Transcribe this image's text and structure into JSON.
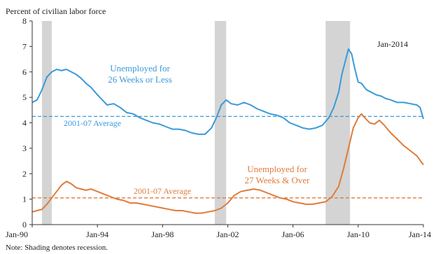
{
  "chart_data": {
    "type": "line",
    "ylabel": "Percent of civilian labor force",
    "xlabel": "",
    "date_stamp": "Jan-2014",
    "note": "Note: Shading denotes recession.",
    "ylim": [
      0,
      8
    ],
    "yticks": [
      0,
      1,
      2,
      3,
      4,
      5,
      6,
      7,
      8
    ],
    "xlim": [
      1990.0,
      2014.0
    ],
    "xticks": [
      {
        "value": 1990.0,
        "label": "Jan-90"
      },
      {
        "value": 1994.0,
        "label": "Jan-94"
      },
      {
        "value": 1998.0,
        "label": "Jan-98"
      },
      {
        "value": 2002.0,
        "label": "Jan-02"
      },
      {
        "value": 2006.0,
        "label": "Jan-06"
      },
      {
        "value": 2010.0,
        "label": "Jan-10"
      },
      {
        "value": 2014.0,
        "label": "Jan-14"
      }
    ],
    "recessions": [
      {
        "start": 1990.6,
        "end": 1991.2
      },
      {
        "start": 2001.2,
        "end": 2001.9
      },
      {
        "start": 2008.0,
        "end": 2009.5
      }
    ],
    "series": [
      {
        "name": "Unemployed for 26 Weeks or Less",
        "name_line1": "Unemployed for",
        "name_line2": "26 Weeks or Less",
        "color": "#3a9ad9",
        "x": [
          1990.0,
          1990.3,
          1990.6,
          1990.9,
          1991.2,
          1991.5,
          1991.8,
          1992.1,
          1992.4,
          1992.7,
          1993.0,
          1993.3,
          1993.6,
          1994.0,
          1994.3,
          1994.6,
          1995.0,
          1995.4,
          1995.8,
          1996.2,
          1996.6,
          1997.0,
          1997.4,
          1997.8,
          1998.2,
          1998.6,
          1999.0,
          1999.4,
          1999.8,
          2000.2,
          2000.6,
          2001.0,
          2001.3,
          2001.6,
          2001.9,
          2002.2,
          2002.6,
          2003.0,
          2003.4,
          2003.8,
          2004.2,
          2004.6,
          2005.0,
          2005.4,
          2005.8,
          2006.2,
          2006.6,
          2007.0,
          2007.4,
          2007.8,
          2008.2,
          2008.5,
          2008.8,
          2009.0,
          2009.2,
          2009.4,
          2009.6,
          2009.8,
          2010.0,
          2010.2,
          2010.5,
          2010.8,
          2011.1,
          2011.4,
          2011.7,
          2012.0,
          2012.4,
          2012.8,
          2013.2,
          2013.6,
          2013.8,
          2014.0
        ],
        "values": [
          4.8,
          4.9,
          5.3,
          5.8,
          6.0,
          6.1,
          6.05,
          6.1,
          6.0,
          5.9,
          5.75,
          5.55,
          5.4,
          5.1,
          4.9,
          4.7,
          4.75,
          4.6,
          4.4,
          4.35,
          4.2,
          4.1,
          4.0,
          3.95,
          3.85,
          3.75,
          3.75,
          3.7,
          3.6,
          3.55,
          3.55,
          3.8,
          4.2,
          4.7,
          4.9,
          4.75,
          4.7,
          4.8,
          4.7,
          4.55,
          4.45,
          4.35,
          4.3,
          4.2,
          4.0,
          3.9,
          3.8,
          3.75,
          3.8,
          3.9,
          4.2,
          4.6,
          5.2,
          5.9,
          6.4,
          6.9,
          6.7,
          6.1,
          5.6,
          5.55,
          5.3,
          5.2,
          5.1,
          5.05,
          4.95,
          4.9,
          4.8,
          4.8,
          4.75,
          4.7,
          4.6,
          4.15
        ]
      },
      {
        "name": "Unemployed for 27 Weeks & Over",
        "name_line1": "Unemployed for",
        "name_line2": "27 Weeks & Over",
        "color": "#e07b39",
        "x": [
          1990.0,
          1990.3,
          1990.6,
          1990.9,
          1991.2,
          1991.5,
          1991.8,
          1992.1,
          1992.4,
          1992.7,
          1993.0,
          1993.3,
          1993.6,
          1994.0,
          1994.4,
          1994.8,
          1995.2,
          1995.6,
          1996.0,
          1996.4,
          1996.8,
          1997.2,
          1997.6,
          1998.0,
          1998.4,
          1998.8,
          1999.2,
          1999.6,
          2000.0,
          2000.4,
          2000.8,
          2001.2,
          2001.6,
          2002.0,
          2002.4,
          2002.8,
          2003.2,
          2003.6,
          2004.0,
          2004.4,
          2004.8,
          2005.2,
          2005.6,
          2006.0,
          2006.4,
          2006.8,
          2007.2,
          2007.6,
          2008.0,
          2008.4,
          2008.8,
          2009.1,
          2009.4,
          2009.7,
          2010.0,
          2010.2,
          2010.4,
          2010.7,
          2011.0,
          2011.3,
          2011.6,
          2012.0,
          2012.4,
          2012.8,
          2013.2,
          2013.6,
          2014.0
        ],
        "values": [
          0.5,
          0.55,
          0.6,
          0.8,
          1.05,
          1.3,
          1.55,
          1.7,
          1.6,
          1.45,
          1.4,
          1.35,
          1.4,
          1.3,
          1.2,
          1.1,
          1.0,
          0.95,
          0.85,
          0.85,
          0.8,
          0.75,
          0.7,
          0.65,
          0.6,
          0.55,
          0.55,
          0.5,
          0.45,
          0.45,
          0.5,
          0.55,
          0.65,
          0.85,
          1.15,
          1.3,
          1.35,
          1.4,
          1.35,
          1.25,
          1.15,
          1.05,
          1.0,
          0.9,
          0.85,
          0.8,
          0.8,
          0.85,
          0.9,
          1.1,
          1.5,
          2.2,
          3.0,
          3.8,
          4.2,
          4.35,
          4.2,
          4.0,
          3.95,
          4.1,
          3.9,
          3.6,
          3.35,
          3.1,
          2.9,
          2.7,
          2.35
        ]
      }
    ],
    "reference_lines": [
      {
        "label": "2001-07 Average",
        "value": 4.25,
        "color": "#3a9ad9",
        "series": 0
      },
      {
        "label": "2001-07 Average",
        "value": 1.05,
        "color": "#e07b39",
        "series": 1
      }
    ],
    "grid": false,
    "legend": "none"
  }
}
